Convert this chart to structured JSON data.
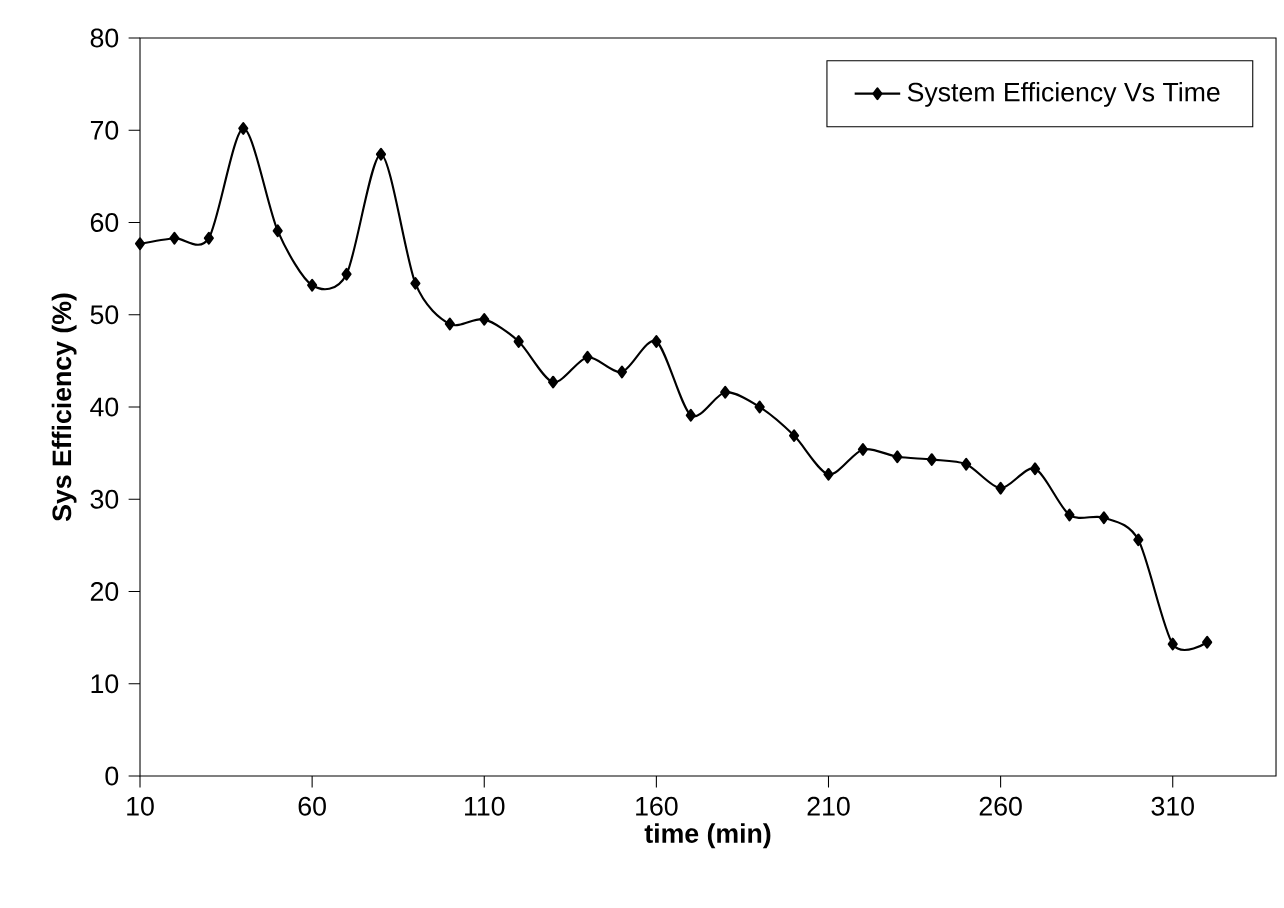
{
  "chart_data": {
    "type": "line",
    "xlabel": "time (min)",
    "ylabel": "Sys Efficiency (%)",
    "x": [
      10,
      20,
      30,
      40,
      50,
      60,
      70,
      80,
      90,
      100,
      110,
      120,
      130,
      140,
      150,
      160,
      170,
      180,
      190,
      200,
      210,
      220,
      230,
      240,
      250,
      260,
      270,
      280,
      290,
      300,
      310,
      320
    ],
    "series": [
      {
        "name": "System Efficiency Vs Time",
        "color": "#000000",
        "values": [
          57.7,
          58.3,
          58.3,
          70.2,
          59.1,
          53.2,
          54.4,
          67.4,
          53.4,
          49.0,
          49.5,
          47.1,
          42.7,
          45.4,
          43.8,
          47.1,
          39.1,
          41.6,
          40.0,
          36.9,
          32.7,
          35.4,
          34.6,
          34.3,
          33.8,
          31.2,
          33.3,
          28.3,
          28.0,
          25.6,
          14.3,
          14.5
        ]
      }
    ],
    "xlim": [
      10,
      340
    ],
    "xticks": [
      10,
      60,
      110,
      160,
      210,
      260,
      310
    ],
    "ylim": [
      0,
      80
    ],
    "yticks": [
      0,
      10,
      20,
      30,
      40,
      50,
      60,
      70,
      80
    ],
    "grid": false,
    "legend": "top right",
    "marker": "diamond",
    "line_style": "solid"
  }
}
